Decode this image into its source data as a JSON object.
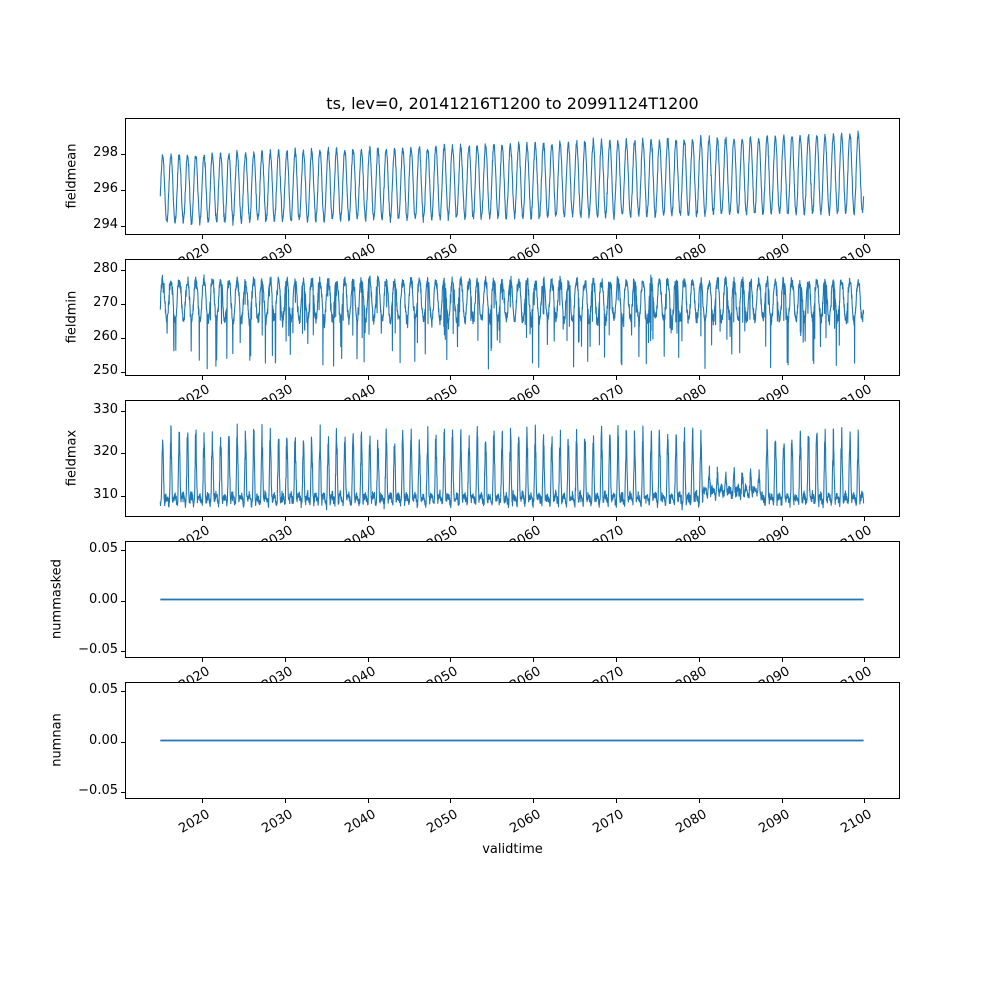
{
  "figure": {
    "title": "ts, lev=0, 20141216T1200 to 20991124T1200",
    "background": "#ffffff",
    "text_color": "#000000",
    "spine_color": "#000000"
  },
  "line_style": {
    "color": "#1f77b4",
    "width": 1.1,
    "flat_width": 1.8
  },
  "axes": {
    "xlabel": "validtime",
    "xlim": [
      2010.7,
      2104.3
    ],
    "xtick_values": [
      2020,
      2030,
      2040,
      2050,
      2060,
      2070,
      2080,
      2090,
      2100
    ],
    "xtick_labels": [
      "2020",
      "2030",
      "2040",
      "2050",
      "2060",
      "2070",
      "2080",
      "2090",
      "2100"
    ],
    "xtick_rotation_deg": 30,
    "x_data_start": 2014.96,
    "x_data_end": 2099.9,
    "grid": false,
    "legend": "none"
  },
  "chart_data": [
    {
      "type": "line",
      "name": "fieldmean",
      "ylabel": "fieldmean",
      "ylim": [
        293.5,
        299.85
      ],
      "ytick_values": [
        294,
        296,
        298
      ],
      "ytick_labels": [
        "294",
        "296",
        "298"
      ],
      "summary": "Annual sinusoidal cycle, peaks ~298.1 rising to ~299.3 and troughs ~293.9 rising to ~294.5 between 2015 and 2100 (slight warming trend).",
      "gen": {
        "kind": "sine",
        "seed": 11,
        "points": 2800,
        "base": 296.0,
        "trend": 0.85,
        "amp": 1.83,
        "ampTrend": 0.32,
        "noise": 0.27,
        "phase": 0.0
      }
    },
    {
      "type": "line",
      "name": "fieldmin",
      "ylabel": "fieldmin",
      "ylim": [
        248.8,
        282.6
      ],
      "ytick_values": [
        250,
        260,
        270,
        280
      ],
      "ytick_labels": [
        "250",
        "260",
        "270",
        "280"
      ],
      "summary": "Noisy annual cycle ~262-280 with frequent sharp downward spikes reaching 250-258; flat-ish tops near 278-280.",
      "gen": {
        "kind": "min",
        "seed": 23,
        "points": 3300,
        "base": 270.6,
        "amp": 5.6,
        "noise": 2.2,
        "phase": 0.0,
        "clipHigh": 280.3,
        "clipLow": 250.5,
        "spikeProb": 0.055,
        "spikeMin": 2.5,
        "spikeVar": 14.5
      }
    },
    {
      "type": "line",
      "name": "fieldmax",
      "ylabel": "fieldmax",
      "ylim": [
        304.9,
        332.2
      ],
      "ytick_values": [
        310,
        320,
        330
      ],
      "ytick_labels": [
        "310",
        "320",
        "330"
      ],
      "summary": "Baseline band ~306-312 with narrow annual upward spikes to ~320-331; spikes suppressed (~315-318) around 2081-2087.",
      "gen": {
        "kind": "max",
        "seed": 37,
        "points": 3300,
        "base": 308.3,
        "baseAmp": 1.4,
        "noise": 1.5,
        "phase": 0.0,
        "power": 3,
        "spike": 13,
        "spikeVar": 6.5,
        "winStart": 2080.5,
        "winEnd": 2087.5,
        "winGain": 0.38,
        "winBase": 1.8
      }
    },
    {
      "type": "line",
      "name": "nummasked",
      "ylabel": "nummasked",
      "ylim": [
        -0.057,
        0.057
      ],
      "ytick_values": [
        -0.05,
        0.0,
        0.05
      ],
      "ytick_labels": [
        "−0.05",
        "0.00",
        "0.05"
      ],
      "summary": "Constant 0.00 from 2015 to 2100.",
      "gen": {
        "kind": "flat",
        "seed": 1,
        "points": 2,
        "value": 0.0
      }
    },
    {
      "type": "line",
      "name": "numnan",
      "ylabel": "numnan",
      "ylim": [
        -0.057,
        0.057
      ],
      "ytick_values": [
        -0.05,
        0.0,
        0.05
      ],
      "ytick_labels": [
        "−0.05",
        "0.00",
        "0.05"
      ],
      "summary": "Constant 0.00 from 2015 to 2100.",
      "gen": {
        "kind": "flat",
        "seed": 2,
        "points": 2,
        "value": 0.0
      }
    }
  ]
}
